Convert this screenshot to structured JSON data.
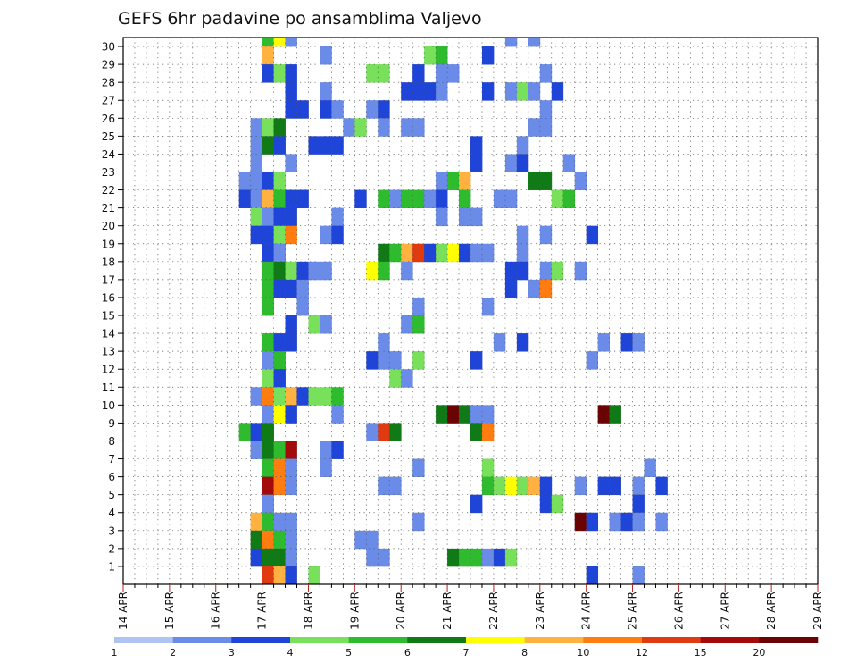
{
  "chart_data": {
    "type": "heatmap",
    "title": "GEFS 6hr padavine po ansamblima Valjevo",
    "x_tick_labels": [
      "14 APR",
      "15 APR",
      "16 APR",
      "17 APR",
      "18 APR",
      "19 APR",
      "20 APR",
      "21 APR",
      "22 APR",
      "23 APR",
      "24 APR",
      "25 APR",
      "26 APR",
      "27 APR",
      "28 APR",
      "29 APR"
    ],
    "y_tick_labels": [
      "1",
      "2",
      "3",
      "4",
      "5",
      "6",
      "7",
      "8",
      "9",
      "10",
      "11",
      "12",
      "13",
      "14",
      "15",
      "16",
      "17",
      "18",
      "19",
      "20",
      "21",
      "22",
      "23",
      "24",
      "25",
      "26",
      "27",
      "28",
      "29",
      "30"
    ],
    "y_range": [
      0,
      30
    ],
    "x_step_hours": 6,
    "grid": true,
    "colorbar": {
      "levels": [
        "1",
        "2",
        "3",
        "4",
        "5",
        "6",
        "7",
        "8",
        "10",
        "12",
        "15",
        "20"
      ],
      "colors": [
        "#b0c4f4",
        "#6a8ce8",
        "#1f44d8",
        "#78e05a",
        "#2ebb2e",
        "#0f7a16",
        "#ffff00",
        "#ffb240",
        "#ff7d10",
        "#e03a10",
        "#a40a0a",
        "#6a0404"
      ]
    },
    "cells": [
      [
        12,
        30,
        4
      ],
      [
        13,
        30,
        6
      ],
      [
        14,
        30,
        1
      ],
      [
        33,
        30,
        1
      ],
      [
        35,
        30,
        1
      ],
      [
        12,
        29,
        7
      ],
      [
        17,
        29,
        1
      ],
      [
        26,
        29,
        3
      ],
      [
        27,
        29,
        4
      ],
      [
        31,
        29,
        2
      ],
      [
        12,
        28,
        2
      ],
      [
        13,
        28,
        3
      ],
      [
        14,
        28,
        2
      ],
      [
        21,
        28,
        3
      ],
      [
        22,
        28,
        3
      ],
      [
        25,
        28,
        2
      ],
      [
        27,
        28,
        1
      ],
      [
        28,
        28,
        1
      ],
      [
        36,
        28,
        1
      ],
      [
        14,
        27,
        2
      ],
      [
        17,
        27,
        1
      ],
      [
        24,
        27,
        2
      ],
      [
        25,
        27,
        2
      ],
      [
        26,
        27,
        2
      ],
      [
        27,
        27,
        1
      ],
      [
        31,
        27,
        2
      ],
      [
        33,
        27,
        1
      ],
      [
        34,
        27,
        3
      ],
      [
        35,
        27,
        1
      ],
      [
        37,
        27,
        2
      ],
      [
        14,
        26,
        2
      ],
      [
        15,
        26,
        2
      ],
      [
        17,
        26,
        2
      ],
      [
        18,
        26,
        1
      ],
      [
        21,
        26,
        1
      ],
      [
        22,
        26,
        2
      ],
      [
        36,
        26,
        1
      ],
      [
        11,
        25,
        1
      ],
      [
        12,
        25,
        3
      ],
      [
        13,
        25,
        5
      ],
      [
        19,
        25,
        1
      ],
      [
        20,
        25,
        3
      ],
      [
        22,
        25,
        1
      ],
      [
        24,
        25,
        1
      ],
      [
        25,
        25,
        1
      ],
      [
        35,
        25,
        1
      ],
      [
        36,
        25,
        1
      ],
      [
        11,
        24,
        1
      ],
      [
        12,
        24,
        5
      ],
      [
        13,
        24,
        2
      ],
      [
        16,
        24,
        2
      ],
      [
        17,
        24,
        2
      ],
      [
        18,
        24,
        2
      ],
      [
        30,
        24,
        2
      ],
      [
        34,
        24,
        1
      ],
      [
        11,
        23,
        1
      ],
      [
        14,
        23,
        1
      ],
      [
        30,
        23,
        2
      ],
      [
        33,
        23,
        1
      ],
      [
        34,
        23,
        2
      ],
      [
        38,
        23,
        1
      ],
      [
        10,
        22,
        1
      ],
      [
        11,
        22,
        1
      ],
      [
        12,
        22,
        2
      ],
      [
        13,
        22,
        3
      ],
      [
        27,
        22,
        1
      ],
      [
        28,
        22,
        4
      ],
      [
        29,
        22,
        7
      ],
      [
        35,
        22,
        5
      ],
      [
        36,
        22,
        5
      ],
      [
        39,
        22,
        1
      ],
      [
        10,
        21,
        2
      ],
      [
        11,
        21,
        1
      ],
      [
        12,
        21,
        7
      ],
      [
        13,
        21,
        4
      ],
      [
        14,
        21,
        2
      ],
      [
        15,
        21,
        2
      ],
      [
        20,
        21,
        2
      ],
      [
        22,
        21,
        4
      ],
      [
        23,
        21,
        1
      ],
      [
        24,
        21,
        4
      ],
      [
        25,
        21,
        4
      ],
      [
        26,
        21,
        1
      ],
      [
        27,
        21,
        2
      ],
      [
        29,
        21,
        4
      ],
      [
        32,
        21,
        1
      ],
      [
        33,
        21,
        1
      ],
      [
        37,
        21,
        3
      ],
      [
        38,
        21,
        4
      ],
      [
        11,
        20,
        3
      ],
      [
        12,
        20,
        1
      ],
      [
        13,
        20,
        2
      ],
      [
        14,
        20,
        2
      ],
      [
        18,
        20,
        1
      ],
      [
        27,
        20,
        1
      ],
      [
        29,
        20,
        1
      ],
      [
        30,
        20,
        1
      ],
      [
        11,
        19,
        2
      ],
      [
        12,
        19,
        2
      ],
      [
        13,
        19,
        3
      ],
      [
        14,
        19,
        8
      ],
      [
        17,
        19,
        1
      ],
      [
        18,
        19,
        2
      ],
      [
        34,
        19,
        1
      ],
      [
        36,
        19,
        1
      ],
      [
        40,
        19,
        2
      ],
      [
        12,
        18,
        2
      ],
      [
        13,
        18,
        1
      ],
      [
        22,
        18,
        5
      ],
      [
        23,
        18,
        4
      ],
      [
        24,
        18,
        7
      ],
      [
        25,
        18,
        9
      ],
      [
        26,
        18,
        2
      ],
      [
        27,
        18,
        3
      ],
      [
        28,
        18,
        6
      ],
      [
        29,
        18,
        2
      ],
      [
        30,
        18,
        1
      ],
      [
        31,
        18,
        1
      ],
      [
        34,
        18,
        1
      ],
      [
        12,
        17,
        4
      ],
      [
        13,
        17,
        5
      ],
      [
        14,
        17,
        3
      ],
      [
        15,
        17,
        2
      ],
      [
        16,
        17,
        1
      ],
      [
        17,
        17,
        1
      ],
      [
        21,
        17,
        6
      ],
      [
        22,
        17,
        4
      ],
      [
        24,
        17,
        1
      ],
      [
        33,
        17,
        2
      ],
      [
        34,
        17,
        2
      ],
      [
        36,
        17,
        1
      ],
      [
        37,
        17,
        3
      ],
      [
        39,
        17,
        1
      ],
      [
        12,
        16,
        4
      ],
      [
        13,
        16,
        2
      ],
      [
        14,
        16,
        2
      ],
      [
        15,
        16,
        1
      ],
      [
        33,
        16,
        2
      ],
      [
        35,
        16,
        1
      ],
      [
        36,
        16,
        8
      ],
      [
        12,
        15,
        4
      ],
      [
        15,
        15,
        1
      ],
      [
        25,
        15,
        1
      ],
      [
        31,
        15,
        1
      ],
      [
        14,
        14,
        2
      ],
      [
        16,
        14,
        3
      ],
      [
        17,
        14,
        1
      ],
      [
        24,
        14,
        1
      ],
      [
        25,
        14,
        4
      ],
      [
        12,
        13,
        4
      ],
      [
        13,
        13,
        2
      ],
      [
        14,
        13,
        2
      ],
      [
        22,
        13,
        1
      ],
      [
        32,
        13,
        1
      ],
      [
        34,
        13,
        2
      ],
      [
        41,
        13,
        1
      ],
      [
        43,
        13,
        2
      ],
      [
        44,
        13,
        1
      ],
      [
        12,
        12,
        1
      ],
      [
        13,
        12,
        4
      ],
      [
        21,
        12,
        2
      ],
      [
        22,
        12,
        1
      ],
      [
        23,
        12,
        1
      ],
      [
        25,
        12,
        3
      ],
      [
        30,
        12,
        2
      ],
      [
        40,
        12,
        1
      ],
      [
        12,
        11,
        3
      ],
      [
        13,
        11,
        2
      ],
      [
        23,
        11,
        3
      ],
      [
        24,
        11,
        1
      ],
      [
        11,
        10,
        1
      ],
      [
        12,
        10,
        8
      ],
      [
        13,
        10,
        3
      ],
      [
        14,
        10,
        7
      ],
      [
        15,
        10,
        2
      ],
      [
        16,
        10,
        3
      ],
      [
        17,
        10,
        3
      ],
      [
        18,
        10,
        4
      ],
      [
        12,
        9,
        1
      ],
      [
        13,
        9,
        6
      ],
      [
        14,
        9,
        2
      ],
      [
        18,
        9,
        1
      ],
      [
        27,
        9,
        5
      ],
      [
        28,
        9,
        11
      ],
      [
        29,
        9,
        5
      ],
      [
        30,
        9,
        1
      ],
      [
        31,
        9,
        1
      ],
      [
        41,
        9,
        11
      ],
      [
        42,
        9,
        5
      ],
      [
        10,
        8,
        4
      ],
      [
        11,
        8,
        2
      ],
      [
        12,
        8,
        5
      ],
      [
        21,
        8,
        1
      ],
      [
        22,
        8,
        9
      ],
      [
        23,
        8,
        5
      ],
      [
        30,
        8,
        5
      ],
      [
        31,
        8,
        8
      ],
      [
        11,
        7,
        1
      ],
      [
        12,
        7,
        5
      ],
      [
        13,
        7,
        4
      ],
      [
        14,
        7,
        10
      ],
      [
        17,
        7,
        1
      ],
      [
        18,
        7,
        2
      ],
      [
        12,
        6,
        4
      ],
      [
        13,
        6,
        8
      ],
      [
        14,
        6,
        1
      ],
      [
        17,
        6,
        1
      ],
      [
        25,
        6,
        1
      ],
      [
        31,
        6,
        3
      ],
      [
        45,
        6,
        1
      ],
      [
        12,
        5,
        10
      ],
      [
        13,
        5,
        8
      ],
      [
        14,
        5,
        1
      ],
      [
        22,
        5,
        1
      ],
      [
        23,
        5,
        1
      ],
      [
        31,
        5,
        4
      ],
      [
        32,
        5,
        3
      ],
      [
        33,
        5,
        6
      ],
      [
        34,
        5,
        3
      ],
      [
        35,
        5,
        7
      ],
      [
        36,
        5,
        2
      ],
      [
        39,
        5,
        1
      ],
      [
        41,
        5,
        2
      ],
      [
        42,
        5,
        2
      ],
      [
        44,
        5,
        1
      ],
      [
        46,
        5,
        2
      ],
      [
        12,
        4,
        1
      ],
      [
        30,
        4,
        2
      ],
      [
        36,
        4,
        2
      ],
      [
        37,
        4,
        3
      ],
      [
        44,
        4,
        2
      ],
      [
        11,
        3,
        7
      ],
      [
        12,
        3,
        4
      ],
      [
        13,
        3,
        1
      ],
      [
        14,
        3,
        1
      ],
      [
        25,
        3,
        1
      ],
      [
        39,
        3,
        11
      ],
      [
        40,
        3,
        2
      ],
      [
        42,
        3,
        1
      ],
      [
        43,
        3,
        2
      ],
      [
        44,
        3,
        1
      ],
      [
        46,
        3,
        1
      ],
      [
        11,
        2,
        5
      ],
      [
        12,
        2,
        8
      ],
      [
        13,
        2,
        4
      ],
      [
        14,
        2,
        1
      ],
      [
        20,
        2,
        1
      ],
      [
        21,
        2,
        1
      ],
      [
        11,
        1,
        2
      ],
      [
        12,
        1,
        5
      ],
      [
        13,
        1,
        5
      ],
      [
        14,
        1,
        1
      ],
      [
        21,
        1,
        1
      ],
      [
        22,
        1,
        1
      ],
      [
        28,
        1,
        5
      ],
      [
        29,
        1,
        4
      ],
      [
        30,
        1,
        4
      ],
      [
        31,
        1,
        1
      ],
      [
        32,
        1,
        2
      ],
      [
        33,
        1,
        3
      ],
      [
        12,
        0,
        9
      ],
      [
        13,
        0,
        7
      ],
      [
        14,
        0,
        2
      ],
      [
        16,
        0,
        3
      ],
      [
        40,
        0,
        2
      ],
      [
        44,
        0,
        1
      ]
    ]
  }
}
